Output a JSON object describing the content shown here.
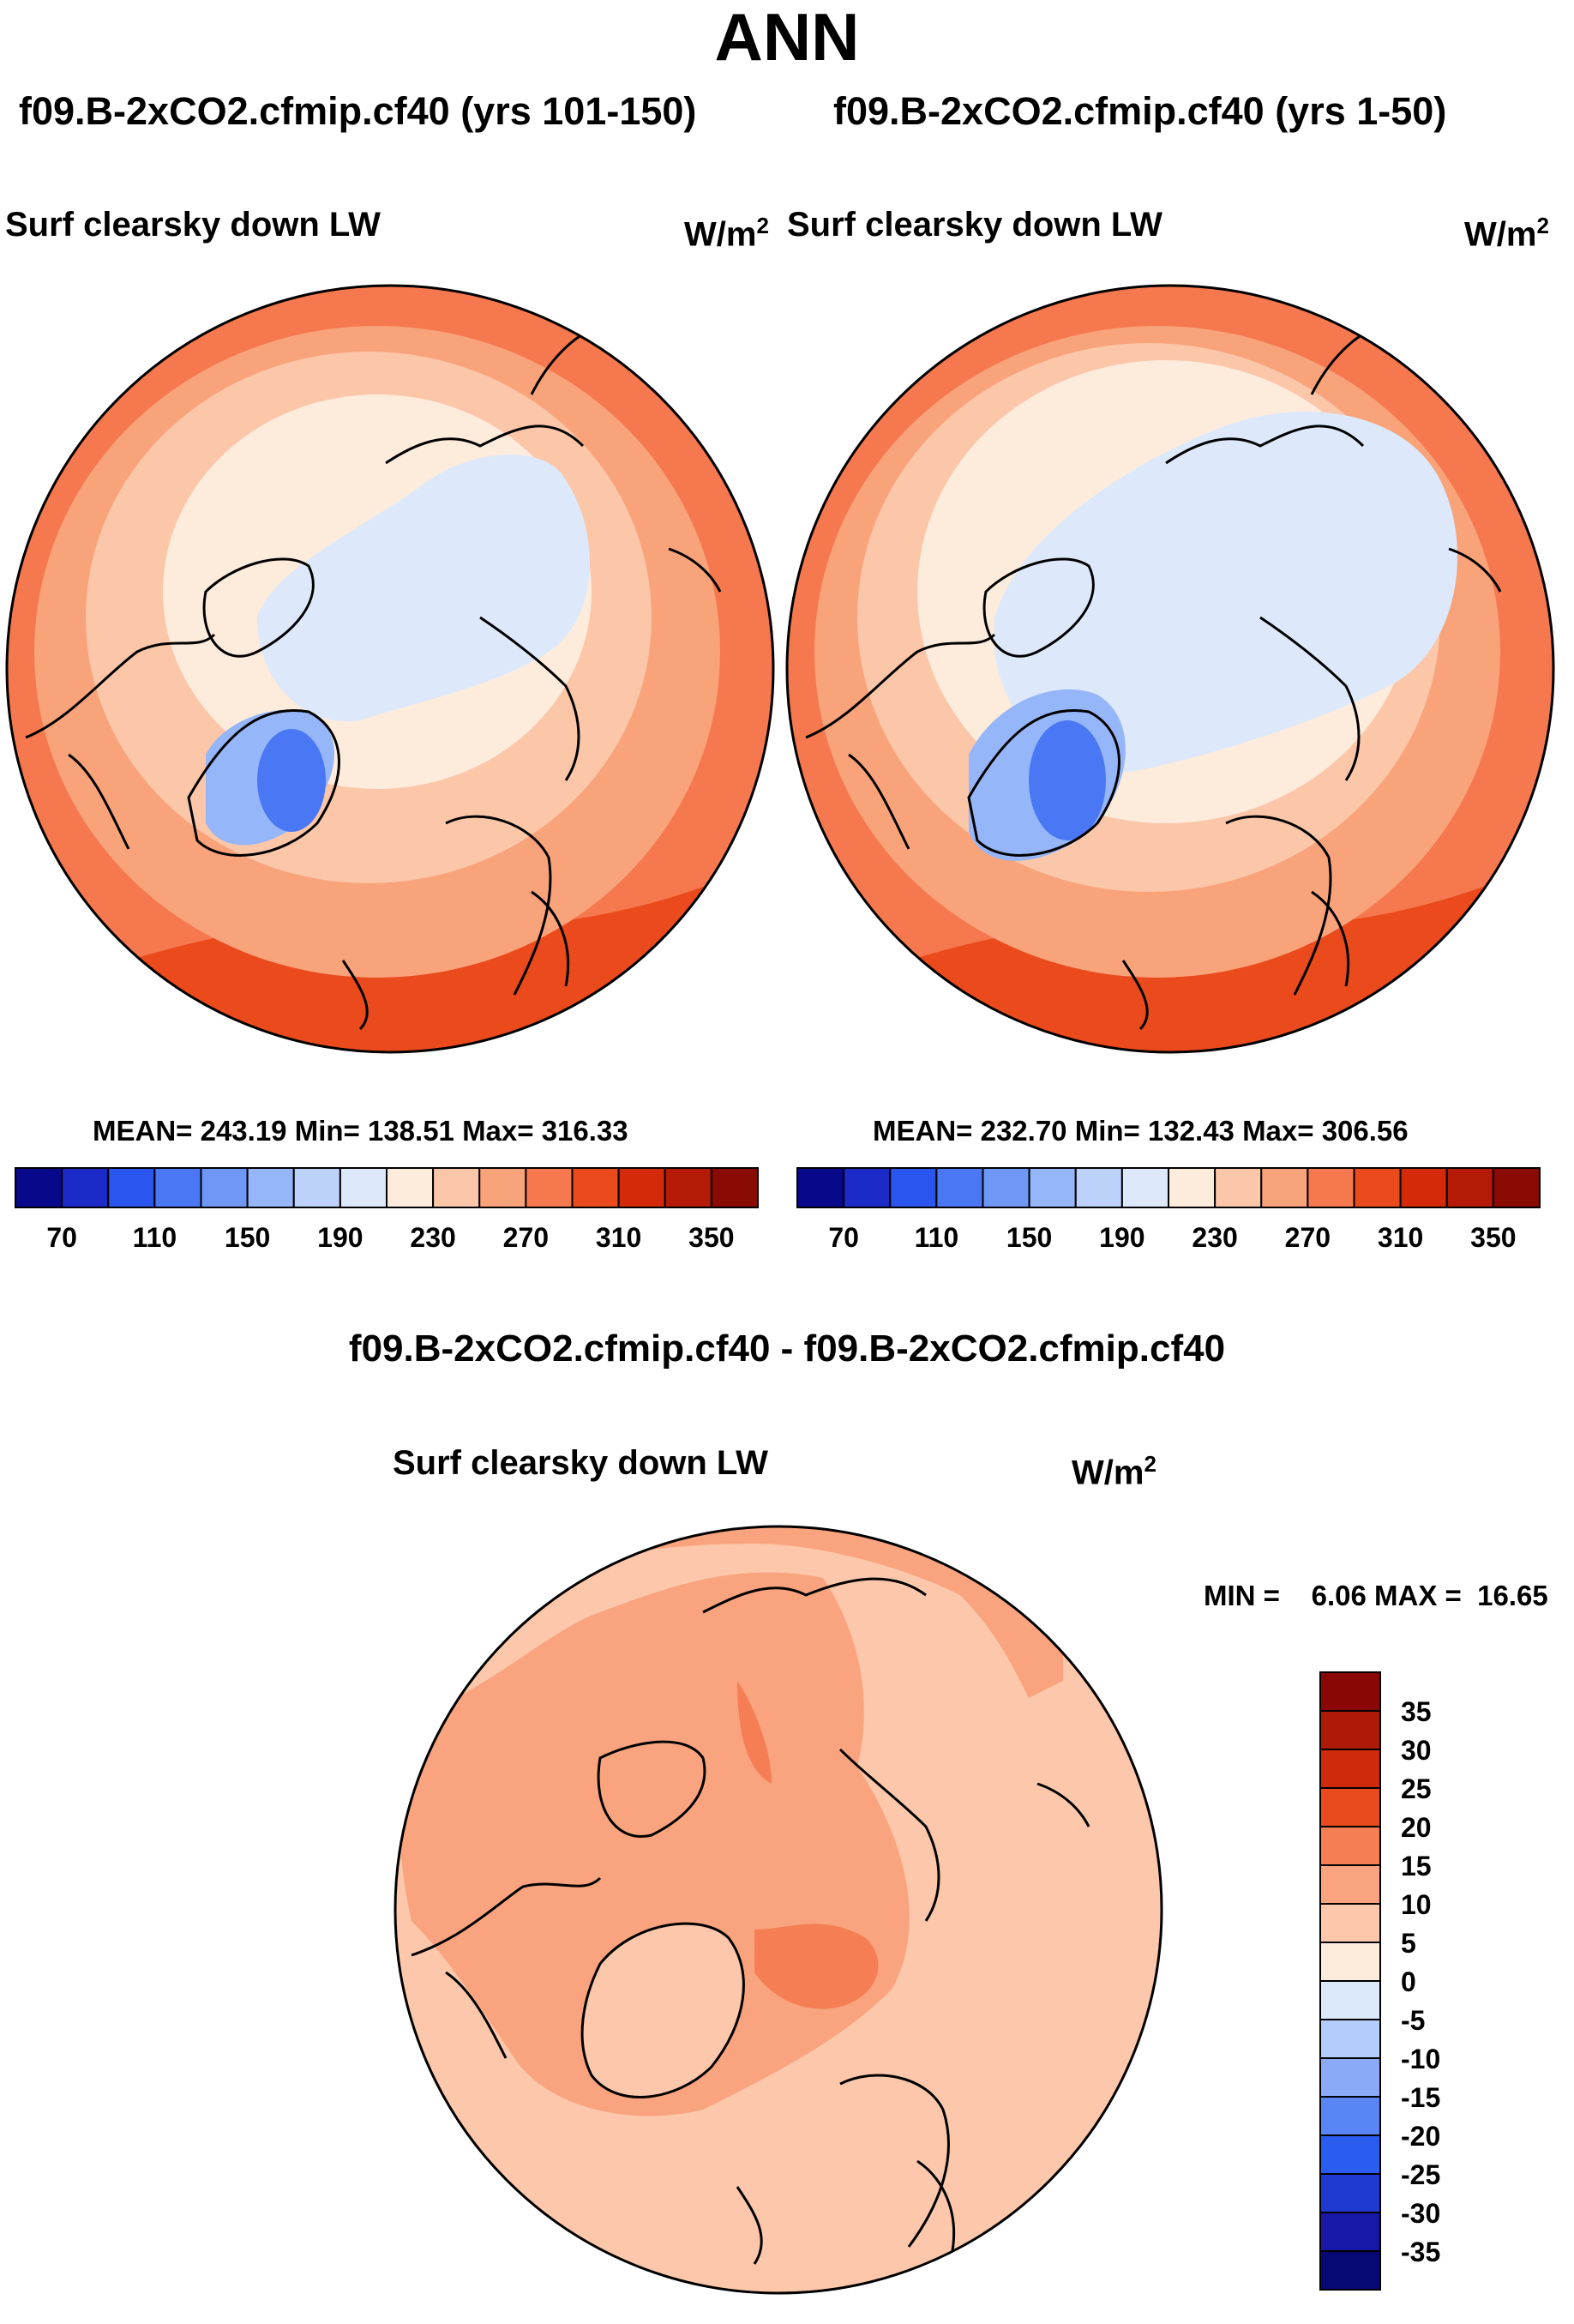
{
  "figure": {
    "title": "ANN"
  },
  "panels": [
    {
      "id": "left",
      "case_title": "f09.B-2xCO2.cfmip.cf40 (yrs 101-150)",
      "variable": "Surf clearsky down LW",
      "units_base": "W/m",
      "units_exp": "2",
      "stats": "MEAN= 243.19  Min= 138.51  Max= 316.33"
    },
    {
      "id": "right",
      "case_title": "f09.B-2xCO2.cfmip.cf40 (yrs 1-50)",
      "variable": "Surf clearsky down LW",
      "units_base": "W/m",
      "units_exp": "2",
      "stats": "MEAN= 232.70  Min= 132.43  Max= 306.56"
    }
  ],
  "diff_panel": {
    "case_title": "f09.B-2xCO2.cfmip.cf40 - f09.B-2xCO2.cfmip.cf40",
    "variable": "Surf clearsky down LW",
    "units_base": "W/m",
    "units_exp": "2",
    "stats": "MIN =    6.06 MAX =  16.65"
  },
  "colorbar_abs": {
    "colors": [
      "#08088a",
      "#1c2ac8",
      "#2a55ee",
      "#4a78f4",
      "#6f97f6",
      "#95b6f8",
      "#bcd2fb",
      "#dde9fb",
      "#fdebdc",
      "#fcc6a9",
      "#f9a37b",
      "#f5784e",
      "#ea4a1c",
      "#d42a0a",
      "#b51a06",
      "#8a0a04"
    ],
    "tick_labels": [
      "70",
      "110",
      "150",
      "190",
      "230",
      "270",
      "310",
      "350"
    ]
  },
  "colorbar_diff": {
    "colors": [
      "#080874",
      "#1818a8",
      "#1f3ad0",
      "#2b5cf0",
      "#5a86f5",
      "#8aaaf7",
      "#b3cdfa",
      "#dbe9fb",
      "#fdebdc",
      "#fcc7aa",
      "#f9a47e",
      "#f57e54",
      "#ea4b1e",
      "#cf2a0c",
      "#ad1a06",
      "#8a0804"
    ],
    "tick_labels": [
      "35",
      "30",
      "25",
      "20",
      "15",
      "10",
      "5",
      "0",
      "-5",
      "-10",
      "-15",
      "-20",
      "-25",
      "-30",
      "-35"
    ]
  }
}
